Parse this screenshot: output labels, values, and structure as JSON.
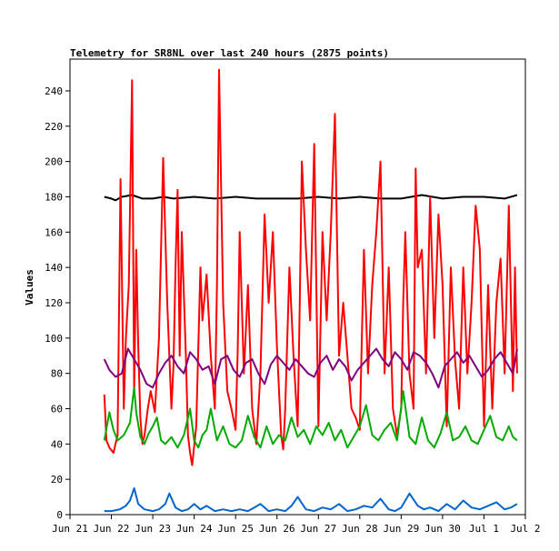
{
  "chart_data": {
    "type": "line",
    "title": "Telemetry for SR8NL over last 240 hours (2875 points)",
    "xlabel": "",
    "ylabel": "Values",
    "ylim": [
      0,
      258
    ],
    "yticks": [
      0,
      20,
      40,
      60,
      80,
      100,
      120,
      140,
      160,
      180,
      200,
      220,
      240
    ],
    "xlim": [
      0,
      11
    ],
    "xticks": [
      {
        "x": 0,
        "label": "Jun 21"
      },
      {
        "x": 1,
        "label": "Jun 22"
      },
      {
        "x": 2,
        "label": "Jun 23"
      },
      {
        "x": 3,
        "label": "Jun 24"
      },
      {
        "x": 4,
        "label": "Jun 25"
      },
      {
        "x": 5,
        "label": "Jun 26"
      },
      {
        "x": 6,
        "label": "Jun 27"
      },
      {
        "x": 7,
        "label": "Jun 28"
      },
      {
        "x": 8,
        "label": "Jun 29"
      },
      {
        "x": 9,
        "label": "Jun 30"
      },
      {
        "x": 10,
        "label": "Jul 1"
      },
      {
        "x": 11,
        "label": "Jul 2"
      }
    ],
    "grid": false,
    "legend": "none",
    "series": [
      {
        "color": "#000000",
        "x": [
          0.83,
          1.0,
          1.1,
          1.25,
          1.5,
          1.75,
          2.0,
          2.25,
          2.5,
          3.0,
          3.5,
          4.0,
          4.5,
          5.0,
          5.5,
          6.0,
          6.5,
          7.0,
          7.5,
          8.0,
          8.5,
          9.0,
          9.5,
          10.0,
          10.5,
          10.8
        ],
        "y": [
          180,
          179,
          178,
          180,
          181,
          179,
          179,
          180,
          179,
          180,
          179,
          180,
          179,
          179,
          179,
          180,
          179,
          180,
          179,
          179,
          181,
          179,
          180,
          180,
          179,
          181
        ]
      },
      {
        "color": "#ff0000",
        "x": [
          0.83,
          0.88,
          0.95,
          1.05,
          1.15,
          1.22,
          1.3,
          1.35,
          1.42,
          1.5,
          1.55,
          1.6,
          1.65,
          1.7,
          1.75,
          1.8,
          1.88,
          1.95,
          2.05,
          2.15,
          2.25,
          2.35,
          2.45,
          2.5,
          2.55,
          2.6,
          2.65,
          2.7,
          2.8,
          2.85,
          2.9,
          2.95,
          3.05,
          3.15,
          3.2,
          3.3,
          3.4,
          3.5,
          3.55,
          3.6,
          3.7,
          3.8,
          3.9,
          4.0,
          4.05,
          4.1,
          4.2,
          4.3,
          4.4,
          4.5,
          4.6,
          4.7,
          4.8,
          4.9,
          5.0,
          5.1,
          5.15,
          5.2,
          5.3,
          5.4,
          5.5,
          5.55,
          5.6,
          5.7,
          5.8,
          5.9,
          6.0,
          6.1,
          6.2,
          6.3,
          6.4,
          6.5,
          6.6,
          6.7,
          6.8,
          6.9,
          7.0,
          7.05,
          7.1,
          7.2,
          7.3,
          7.4,
          7.5,
          7.6,
          7.7,
          7.8,
          7.9,
          8.0,
          8.05,
          8.1,
          8.2,
          8.3,
          8.35,
          8.4,
          8.5,
          8.6,
          8.7,
          8.8,
          8.9,
          9.0,
          9.1,
          9.2,
          9.3,
          9.4,
          9.5,
          9.6,
          9.7,
          9.8,
          9.9,
          10.0,
          10.1,
          10.2,
          10.3,
          10.4,
          10.5,
          10.6,
          10.65,
          10.7,
          10.75,
          10.8
        ],
        "y": [
          68,
          42,
          38,
          35,
          45,
          190,
          60,
          100,
          130,
          246,
          70,
          150,
          95,
          55,
          40,
          45,
          60,
          70,
          58,
          100,
          202,
          120,
          60,
          85,
          140,
          184,
          90,
          160,
          90,
          45,
          35,
          28,
          50,
          140,
          110,
          136,
          90,
          60,
          130,
          252,
          120,
          70,
          60,
          48,
          92,
          160,
          80,
          130,
          60,
          40,
          80,
          170,
          120,
          160,
          95,
          45,
          37,
          60,
          140,
          90,
          50,
          120,
          200,
          150,
          110,
          210,
          50,
          160,
          110,
          160,
          227,
          90,
          120,
          90,
          60,
          55,
          48,
          100,
          150,
          80,
          130,
          160,
          200,
          80,
          140,
          60,
          45,
          60,
          120,
          160,
          80,
          60,
          196,
          140,
          150,
          80,
          180,
          100,
          170,
          130,
          50,
          140,
          88,
          60,
          140,
          80,
          120,
          175,
          150,
          50,
          130,
          60,
          120,
          145,
          80,
          175,
          120,
          70,
          140,
          80
        ]
      },
      {
        "color": "#00aa00",
        "x": [
          0.83,
          0.95,
          1.05,
          1.15,
          1.3,
          1.45,
          1.55,
          1.6,
          1.7,
          1.8,
          1.9,
          2.0,
          2.1,
          2.2,
          2.3,
          2.45,
          2.6,
          2.75,
          2.9,
          3.0,
          3.1,
          3.2,
          3.3,
          3.4,
          3.55,
          3.7,
          3.85,
          4.0,
          4.15,
          4.3,
          4.45,
          4.6,
          4.75,
          4.9,
          5.05,
          5.2,
          5.35,
          5.5,
          5.65,
          5.8,
          5.95,
          6.1,
          6.25,
          6.4,
          6.55,
          6.7,
          6.85,
          7.0,
          7.15,
          7.3,
          7.45,
          7.6,
          7.75,
          7.9,
          8.05,
          8.2,
          8.35,
          8.5,
          8.65,
          8.8,
          8.95,
          9.1,
          9.25,
          9.4,
          9.55,
          9.7,
          9.85,
          10.0,
          10.15,
          10.3,
          10.45,
          10.6,
          10.7,
          10.8
        ],
        "y": [
          42,
          58,
          48,
          42,
          45,
          52,
          72,
          58,
          44,
          40,
          46,
          50,
          55,
          42,
          40,
          44,
          38,
          45,
          60,
          42,
          38,
          45,
          48,
          60,
          42,
          50,
          40,
          38,
          42,
          56,
          44,
          38,
          50,
          40,
          45,
          42,
          55,
          44,
          48,
          40,
          50,
          45,
          52,
          42,
          48,
          38,
          44,
          50,
          62,
          45,
          42,
          48,
          52,
          42,
          70,
          44,
          40,
          55,
          42,
          38,
          46,
          58,
          42,
          44,
          50,
          42,
          40,
          48,
          56,
          44,
          42,
          50,
          44,
          42
        ]
      },
      {
        "color": "#7f007f",
        "x": [
          0.83,
          0.95,
          1.1,
          1.25,
          1.4,
          1.55,
          1.7,
          1.85,
          2.0,
          2.15,
          2.3,
          2.45,
          2.6,
          2.75,
          2.9,
          3.05,
          3.2,
          3.35,
          3.5,
          3.65,
          3.8,
          3.95,
          4.1,
          4.25,
          4.4,
          4.55,
          4.7,
          4.85,
          5.0,
          5.15,
          5.3,
          5.45,
          5.6,
          5.75,
          5.9,
          6.05,
          6.2,
          6.35,
          6.5,
          6.65,
          6.8,
          6.95,
          7.1,
          7.25,
          7.4,
          7.55,
          7.7,
          7.85,
          8.0,
          8.15,
          8.3,
          8.45,
          8.6,
          8.75,
          8.9,
          9.05,
          9.2,
          9.35,
          9.5,
          9.65,
          9.8,
          9.95,
          10.1,
          10.25,
          10.4,
          10.55,
          10.7,
          10.8
        ],
        "y": [
          88,
          82,
          78,
          80,
          94,
          88,
          82,
          74,
          72,
          80,
          86,
          90,
          84,
          80,
          92,
          88,
          82,
          84,
          74,
          88,
          90,
          82,
          78,
          86,
          88,
          80,
          74,
          85,
          90,
          86,
          82,
          88,
          84,
          80,
          78,
          86,
          90,
          82,
          88,
          84,
          76,
          82,
          86,
          90,
          94,
          88,
          84,
          92,
          88,
          82,
          92,
          90,
          86,
          80,
          72,
          84,
          88,
          92,
          86,
          90,
          84,
          78,
          82,
          88,
          92,
          86,
          80,
          94
        ]
      },
      {
        "color": "#0066cc",
        "x": [
          0.83,
          1.0,
          1.2,
          1.35,
          1.45,
          1.55,
          1.65,
          1.8,
          2.0,
          2.15,
          2.3,
          2.4,
          2.55,
          2.7,
          2.85,
          3.0,
          3.15,
          3.3,
          3.5,
          3.7,
          3.9,
          4.1,
          4.3,
          4.45,
          4.6,
          4.8,
          5.0,
          5.2,
          5.35,
          5.5,
          5.7,
          5.9,
          6.1,
          6.3,
          6.5,
          6.7,
          6.9,
          7.1,
          7.3,
          7.5,
          7.7,
          7.85,
          8.0,
          8.2,
          8.4,
          8.55,
          8.7,
          8.9,
          9.1,
          9.3,
          9.5,
          9.7,
          9.9,
          10.1,
          10.3,
          10.5,
          10.65,
          10.8
        ],
        "y": [
          2,
          2,
          3,
          5,
          8,
          15,
          6,
          3,
          2,
          3,
          6,
          12,
          4,
          2,
          3,
          6,
          3,
          5,
          2,
          3,
          2,
          3,
          2,
          4,
          6,
          2,
          3,
          2,
          5,
          10,
          3,
          2,
          4,
          3,
          6,
          2,
          3,
          5,
          4,
          9,
          3,
          2,
          4,
          12,
          5,
          3,
          4,
          2,
          6,
          3,
          8,
          4,
          3,
          5,
          7,
          3,
          4,
          6
        ]
      }
    ]
  }
}
